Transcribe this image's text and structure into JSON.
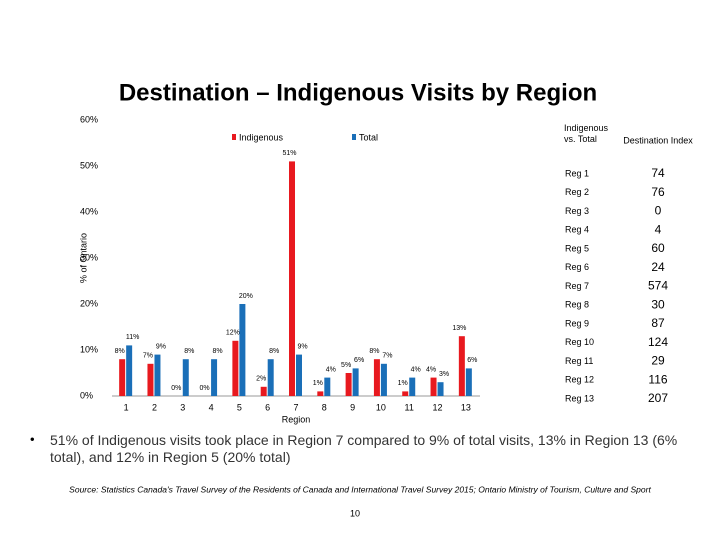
{
  "title": "Destination – Indigenous Visits by Region",
  "chart_data": {
    "type": "bar",
    "x_label": "Region",
    "y_label": "% of Ontario",
    "categories": [
      "1",
      "2",
      "3",
      "4",
      "5",
      "6",
      "7",
      "8",
      "9",
      "10",
      "11",
      "12",
      "13"
    ],
    "series": [
      {
        "name": "Indigenous",
        "color": "#e8191f",
        "values": [
          8,
          7,
          0,
          0,
          12,
          2,
          51,
          1,
          5,
          8,
          1,
          4,
          13
        ],
        "value_labels": [
          "8%",
          "7%",
          "0%",
          "0%",
          "12%",
          "2%",
          "51%",
          "1%",
          "5%",
          "8%",
          "1%",
          "4%",
          "13%"
        ]
      },
      {
        "name": "Total",
        "color": "#1a6fb8",
        "values": [
          11,
          9,
          8,
          8,
          20,
          8,
          9,
          4,
          6,
          7,
          4,
          3,
          6
        ],
        "value_labels": [
          "11%",
          "9%",
          "8%",
          "8%",
          "20%",
          "8%",
          "9%",
          "4%",
          "6%",
          "7%",
          "4%",
          "3%",
          "6%"
        ]
      }
    ],
    "ylim": [
      0,
      60
    ],
    "yticks": [
      {
        "value": 0,
        "label": "0%"
      },
      {
        "value": 10,
        "label": "10%"
      },
      {
        "value": 20,
        "label": "20%"
      },
      {
        "value": 30,
        "label": "30%"
      },
      {
        "value": 40,
        "label": "40%"
      },
      {
        "value": 50,
        "label": "50%"
      },
      {
        "value": 60,
        "label": "60%"
      }
    ],
    "grid": false,
    "legend": "top"
  },
  "table": {
    "header": [
      "Indigenous vs. Total",
      "Destination Index"
    ],
    "rows": [
      [
        "Reg 1",
        "74"
      ],
      [
        "Reg 2",
        "76"
      ],
      [
        "Reg 3",
        "0"
      ],
      [
        "Reg 4",
        "4"
      ],
      [
        "Reg 5",
        "60"
      ],
      [
        "Reg 6",
        "24"
      ],
      [
        "Reg 7",
        "574"
      ],
      [
        "Reg 8",
        "30"
      ],
      [
        "Reg 9",
        "87"
      ],
      [
        "Reg 10",
        "124"
      ],
      [
        "Reg 11",
        "29"
      ],
      [
        "Reg 12",
        "116"
      ],
      [
        "Reg 13",
        "207"
      ]
    ]
  },
  "bullet": "51% of Indigenous visits took place in Region 7 compared to 9% of total visits, 13% in Region 13 (6% total), and 12% in Region 5 (20% total)",
  "source": "Source: Statistics Canada's Travel Survey of the Residents of Canada and International Travel Survey 2015; Ontario Ministry of Tourism, Culture and Sport",
  "page_number": "10"
}
